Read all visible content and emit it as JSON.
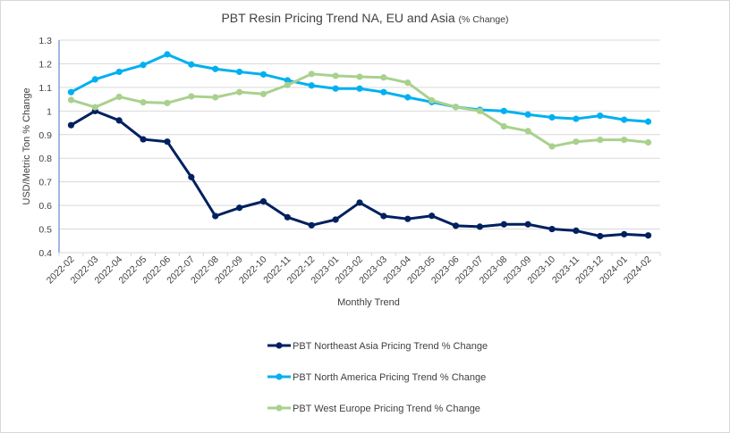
{
  "chart_data": {
    "type": "line",
    "title": "PBT Resin Pricing Trend NA, EU and Asia",
    "title_suffix": "(% Change)",
    "xlabel": "Monthly Trend",
    "ylabel": "USD/Metric Ton % Change",
    "ylim": [
      0.4,
      1.3
    ],
    "yticks": [
      0.4,
      0.5,
      0.6,
      0.7,
      0.8,
      0.9,
      1,
      1.1,
      1.2,
      1.3
    ],
    "ytick_labels": [
      "0.4",
      "0.5",
      "0.6",
      "0.7",
      "0.8",
      "0.9",
      "1",
      "1.1",
      "1.2",
      "1.3"
    ],
    "grid": true,
    "legend_position": "bottom",
    "categories": [
      "2022-02",
      "2022-03",
      "2022-04",
      "2022-05",
      "2022-06",
      "2022-07",
      "2022-08",
      "2022-09",
      "2022-10",
      "2022-11",
      "2022-12",
      "2023-01",
      "2023-02",
      "2023-03",
      "2023-04",
      "2023-05",
      "2023-06",
      "2023-07",
      "2023-08",
      "2023-09",
      "2023-10",
      "2023-11",
      "2023-12",
      "2024-01",
      "2024-02"
    ],
    "series": [
      {
        "name": "PBT Northeast Asia Pricing Trend % Change",
        "color": "#002060",
        "values": [
          0.94,
          1.0,
          0.96,
          0.88,
          0.87,
          0.72,
          0.555,
          0.59,
          0.617,
          0.55,
          0.516,
          0.54,
          0.612,
          0.555,
          0.543,
          0.556,
          0.514,
          0.51,
          0.52,
          0.52,
          0.5,
          0.493,
          0.47,
          0.478,
          0.473
        ]
      },
      {
        "name": "PBT North America Pricing Trend % Change",
        "color": "#00B0F0",
        "values": [
          1.08,
          1.134,
          1.166,
          1.195,
          1.24,
          1.197,
          1.178,
          1.166,
          1.155,
          1.13,
          1.108,
          1.095,
          1.095,
          1.08,
          1.058,
          1.038,
          1.017,
          1.005,
          1.0,
          0.985,
          0.973,
          0.967,
          0.98,
          0.963,
          0.955
        ]
      },
      {
        "name": "PBT West Europe Pricing Trend % Change",
        "color": "#A9D18E",
        "values": [
          1.047,
          1.016,
          1.06,
          1.037,
          1.034,
          1.062,
          1.058,
          1.08,
          1.072,
          1.11,
          1.157,
          1.149,
          1.145,
          1.142,
          1.12,
          1.045,
          1.017,
          1.0,
          0.935,
          0.915,
          0.85,
          0.87,
          0.878,
          0.878,
          0.867
        ]
      }
    ]
  }
}
